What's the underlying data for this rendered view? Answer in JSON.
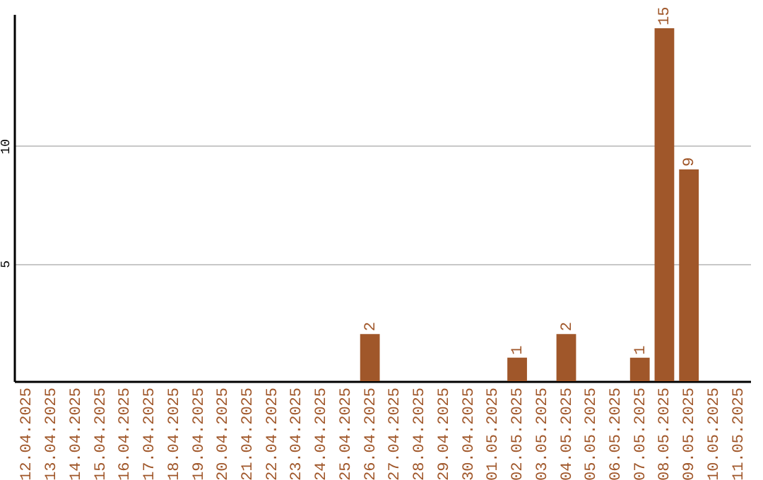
{
  "chart_data": {
    "type": "bar",
    "categories": [
      "12.04.2025",
      "13.04.2025",
      "14.04.2025",
      "15.04.2025",
      "16.04.2025",
      "17.04.2025",
      "18.04.2025",
      "19.04.2025",
      "20.04.2025",
      "21.04.2025",
      "22.04.2025",
      "23.04.2025",
      "24.04.2025",
      "25.04.2025",
      "26.04.2025",
      "27.04.2025",
      "28.04.2025",
      "29.04.2025",
      "30.04.2025",
      "01.05.2025",
      "02.05.2025",
      "03.05.2025",
      "04.05.2025",
      "05.05.2025",
      "06.05.2025",
      "07.05.2025",
      "08.05.2025",
      "09.05.2025",
      "10.05.2025",
      "11.05.2025"
    ],
    "values": [
      0,
      0,
      0,
      0,
      0,
      0,
      0,
      0,
      0,
      0,
      0,
      0,
      0,
      0,
      2,
      0,
      0,
      0,
      0,
      0,
      1,
      0,
      2,
      0,
      0,
      1,
      15,
      9,
      0,
      0
    ],
    "value_labels": [
      null,
      null,
      null,
      null,
      null,
      null,
      null,
      null,
      null,
      null,
      null,
      null,
      null,
      null,
      "2",
      null,
      null,
      null,
      null,
      null,
      "1",
      null,
      "2",
      null,
      null,
      "1",
      "15",
      "9",
      null,
      null
    ],
    "color": "#a0572a",
    "ylim": [
      0,
      15.6
    ],
    "yticks": [
      5,
      10
    ],
    "grid": "y"
  }
}
